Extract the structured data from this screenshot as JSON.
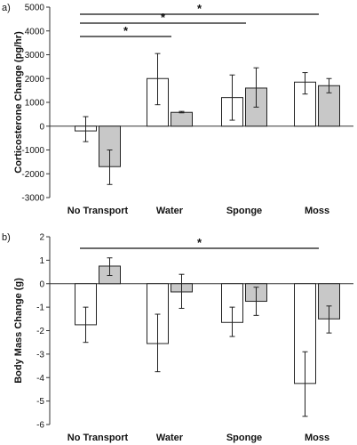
{
  "chart_data": [
    {
      "type": "bar",
      "panel_label": "a)",
      "ylabel": "Corticosterone Change (pg/hr)",
      "categories": [
        "No Transport",
        "Water",
        "Sponge",
        "Moss"
      ],
      "ylim": [
        -3000,
        5000
      ],
      "yticks": [
        "-3000",
        "-2000",
        "-1000",
        "0",
        "1000",
        "2000",
        "3000",
        "4000",
        "5000"
      ],
      "ytick_values": [
        -3000,
        -2000,
        -1000,
        0,
        1000,
        2000,
        3000,
        4000,
        5000
      ],
      "grid": false,
      "series": [
        {
          "color": "#ffffff",
          "values": [
            -200,
            2000,
            1200,
            1850
          ],
          "err_low": [
            -650,
            900,
            250,
            1350
          ],
          "err_high": [
            400,
            3050,
            2150,
            2250
          ]
        },
        {
          "color": "#c8c8c8",
          "values": [
            -1700,
            580,
            1600,
            1700
          ],
          "err_low": [
            -2450,
            560,
            800,
            1400
          ],
          "err_high": [
            -1000,
            620,
            2450,
            2000
          ]
        }
      ],
      "significance": [
        {
          "from": "No Transport",
          "to": "Water",
          "label": "*"
        },
        {
          "from": "No Transport",
          "to": "Sponge",
          "label": "*"
        },
        {
          "from": "No Transport",
          "to": "Moss",
          "label": "*"
        }
      ]
    },
    {
      "type": "bar",
      "panel_label": "b)",
      "ylabel": "Body Mass Change (g)",
      "categories": [
        "No Transport",
        "Water",
        "Sponge",
        "Moss"
      ],
      "ylim": [
        -6,
        2
      ],
      "yticks": [
        "-6",
        "-5",
        "-4",
        "-3",
        "-2",
        "-1",
        "0",
        "1",
        "2"
      ],
      "ytick_values": [
        -6,
        -5,
        -4,
        -3,
        -2,
        -1,
        0,
        1,
        2
      ],
      "grid": false,
      "series": [
        {
          "color": "#ffffff",
          "values": [
            -1.75,
            -2.55,
            -1.65,
            -4.25
          ],
          "err_low": [
            -2.5,
            -3.75,
            -2.25,
            -5.65
          ],
          "err_high": [
            -1.0,
            -1.3,
            -1.0,
            -2.9
          ]
        },
        {
          "color": "#c8c8c8",
          "values": [
            0.75,
            -0.35,
            -0.75,
            -1.5
          ],
          "err_low": [
            0.35,
            -1.05,
            -1.35,
            -2.1
          ],
          "err_high": [
            1.1,
            0.4,
            -0.15,
            -0.95
          ]
        }
      ],
      "significance": [
        {
          "from": "No Transport",
          "to": "Moss",
          "label": "*"
        }
      ]
    }
  ]
}
